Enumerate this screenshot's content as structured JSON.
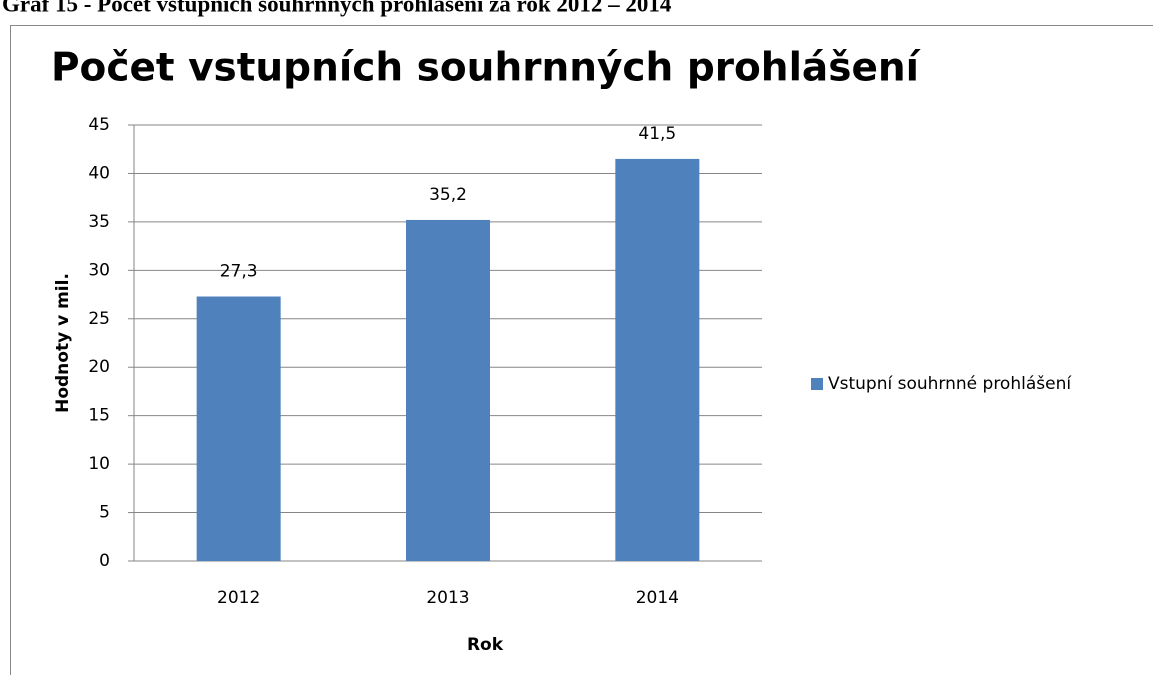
{
  "caption": "Graf 15 - Počet vstupních souhrnných prohlášení za rok 2012 – 2014",
  "chart_data": {
    "type": "bar",
    "title": "Počet vstupních souhrnných prohlášení",
    "x_label": "Rok",
    "y_label": "Hodnoty v mil.",
    "categories": [
      "2012",
      "2013",
      "2014"
    ],
    "series": [
      {
        "name": "Vstupní souhrnné prohlášení",
        "color": "#4f81bd",
        "values": [
          27.3,
          35.2,
          41.5
        ],
        "value_labels": [
          "27,3",
          "35,2",
          "41,5"
        ]
      }
    ],
    "ylim": [
      0,
      45
    ],
    "yticks": [
      0,
      5,
      10,
      15,
      20,
      25,
      30,
      35,
      40,
      45
    ],
    "grid": true,
    "legend": "right"
  }
}
